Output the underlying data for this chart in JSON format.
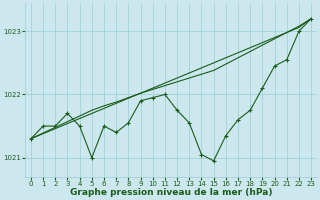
{
  "x": [
    0,
    1,
    2,
    3,
    4,
    5,
    6,
    7,
    8,
    9,
    10,
    11,
    12,
    13,
    14,
    15,
    16,
    17,
    18,
    19,
    20,
    21,
    22,
    23
  ],
  "y_main": [
    1021.3,
    1021.5,
    1021.5,
    1021.7,
    1021.5,
    1021.0,
    1021.5,
    1021.4,
    1021.55,
    1021.9,
    1021.95,
    1022.0,
    1021.75,
    1021.55,
    1021.05,
    1020.95,
    1021.35,
    1021.6,
    1021.75,
    1022.1,
    1022.45,
    1022.55,
    1023.0,
    1023.2
  ],
  "y_trend1": [
    1021.3,
    1021.38,
    1021.46,
    1021.54,
    1021.62,
    1021.7,
    1021.78,
    1021.86,
    1021.94,
    1022.02,
    1022.1,
    1022.18,
    1022.26,
    1022.34,
    1022.42,
    1022.5,
    1022.58,
    1022.66,
    1022.74,
    1022.82,
    1022.9,
    1022.98,
    1023.06,
    1023.2
  ],
  "y_trend2": [
    1021.3,
    1021.39,
    1021.48,
    1021.57,
    1021.66,
    1021.75,
    1021.82,
    1021.88,
    1021.95,
    1022.02,
    1022.08,
    1022.14,
    1022.2,
    1022.26,
    1022.32,
    1022.38,
    1022.48,
    1022.58,
    1022.68,
    1022.78,
    1022.88,
    1022.98,
    1023.08,
    1023.2
  ],
  "bg_color": "#cce8ee",
  "grid_color": "#99ccd5",
  "line_color": "#1a5c1a",
  "xlabel": "Graphe pression niveau de la mer (hPa)",
  "ylim": [
    1020.7,
    1023.45
  ],
  "yticks": [
    1021,
    1022,
    1023
  ],
  "xticks": [
    0,
    1,
    2,
    3,
    4,
    5,
    6,
    7,
    8,
    9,
    10,
    11,
    12,
    13,
    14,
    15,
    16,
    17,
    18,
    19,
    20,
    21,
    22,
    23
  ],
  "tick_fontsize": 5.0,
  "xlabel_fontsize": 6.5,
  "line_width": 0.8,
  "marker_size": 2.5
}
